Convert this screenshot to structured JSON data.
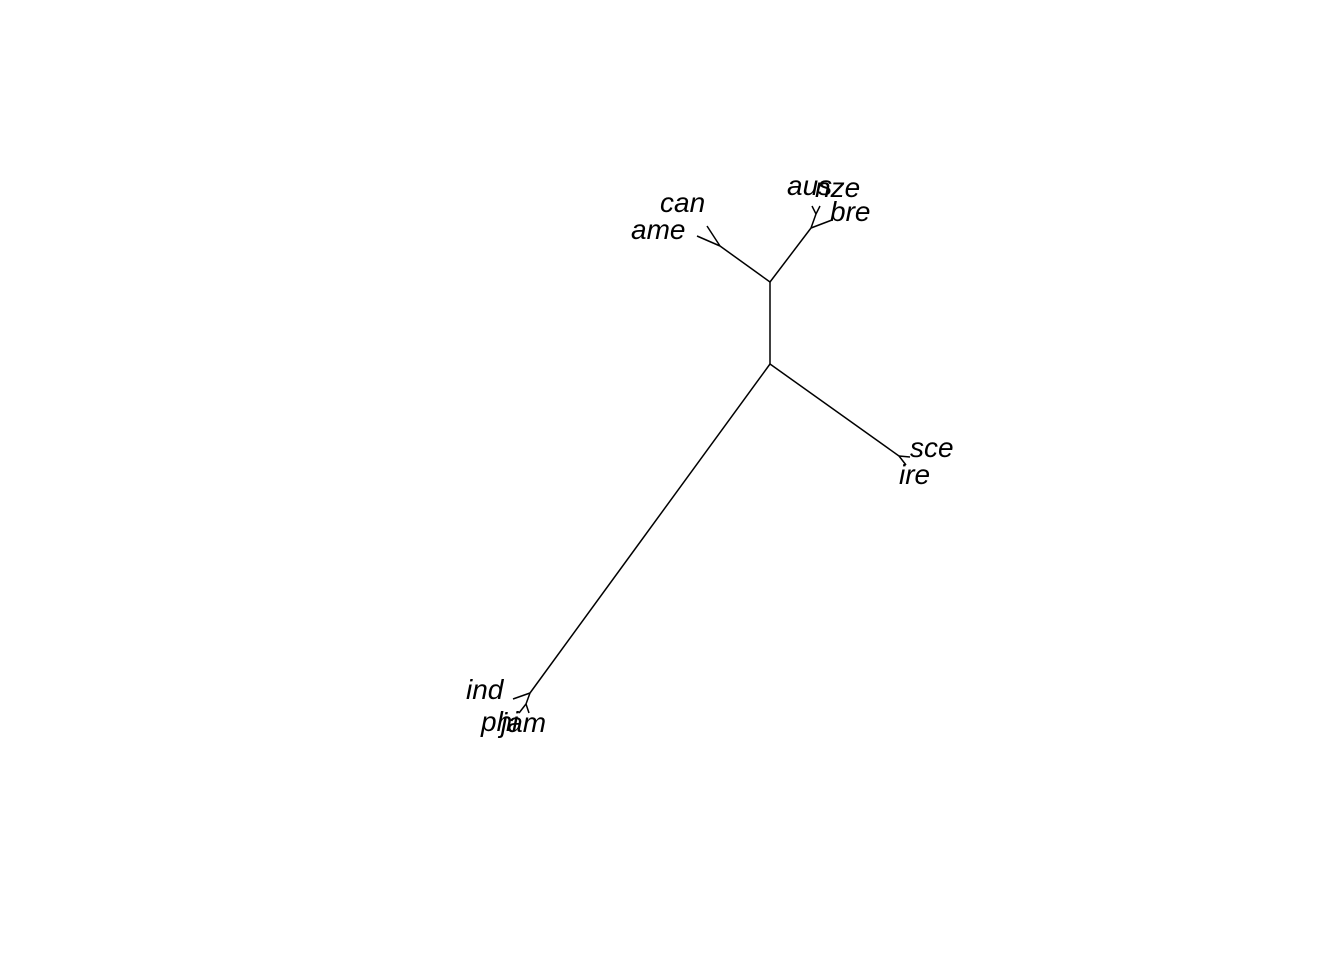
{
  "tree": {
    "type": "unrooted",
    "tips": [
      {
        "id": "can",
        "label": "can"
      },
      {
        "id": "ame",
        "label": "ame"
      },
      {
        "id": "aus",
        "label": "aus"
      },
      {
        "id": "nze",
        "label": "nze"
      },
      {
        "id": "bre",
        "label": "bre"
      },
      {
        "id": "sce",
        "label": "sce"
      },
      {
        "id": "ire",
        "label": "ire"
      },
      {
        "id": "ind",
        "label": "ind"
      },
      {
        "id": "phi",
        "label": "phi"
      },
      {
        "id": "jam",
        "label": "jam"
      }
    ]
  }
}
